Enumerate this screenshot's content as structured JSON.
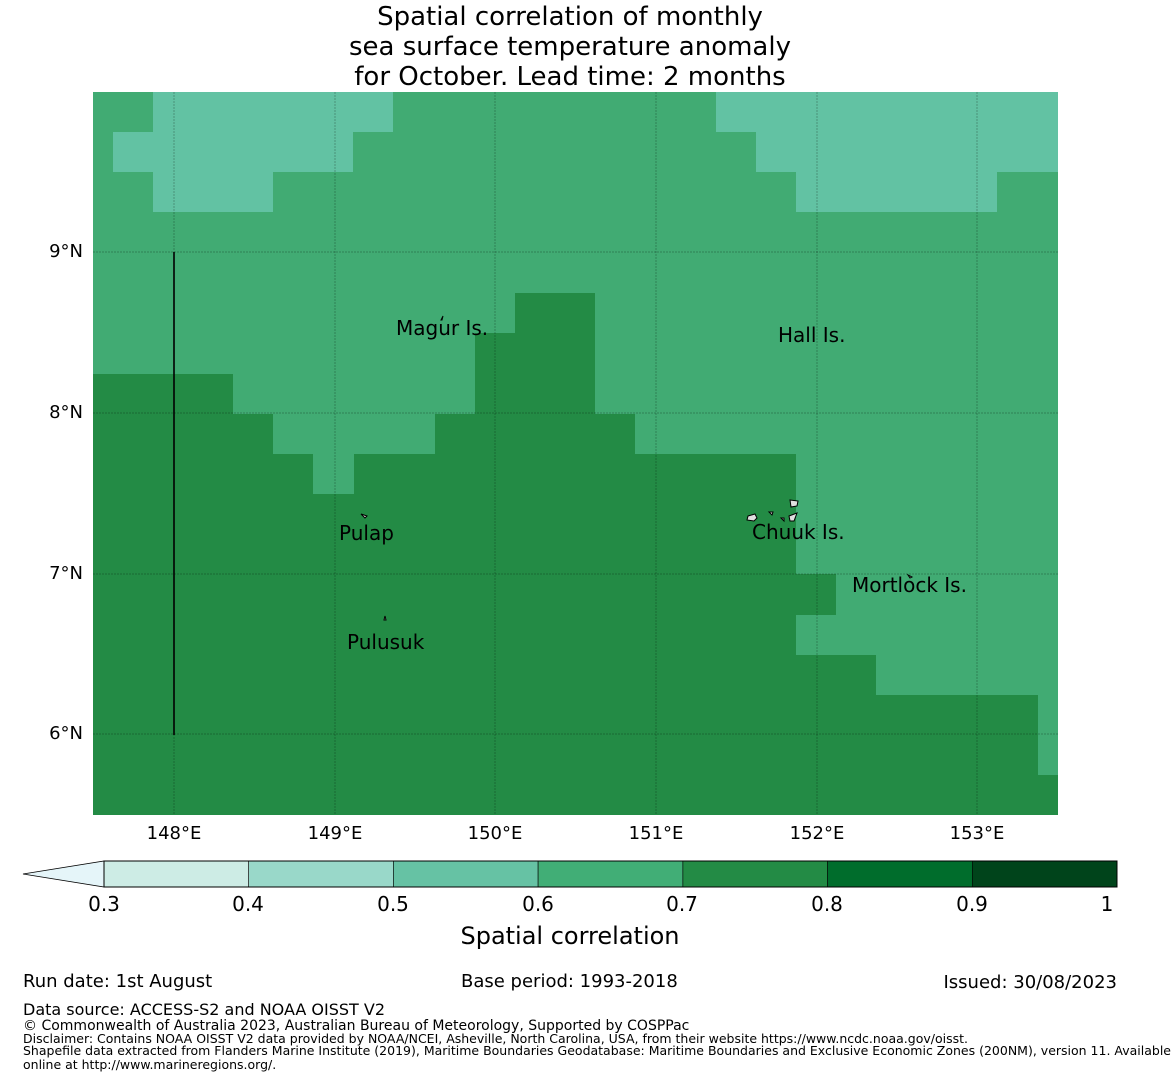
{
  "title": {
    "line1": "Spatial correlation of monthly",
    "line2": "sea surface temperature anomaly",
    "line3": "for October. Lead time: 2 months"
  },
  "map": {
    "lat_labels": [
      "9°N",
      "8°N",
      "7°N",
      "6°N"
    ],
    "lon_labels": [
      "148°E",
      "149°E",
      "150°E",
      "151°E",
      "152°E",
      "153°E"
    ],
    "lon_range": [
      147.5,
      153.5
    ],
    "lat_range": [
      5.5,
      10.0
    ],
    "places": [
      {
        "name": "Magur Is.",
        "lon": 149.6,
        "lat": 8.5
      },
      {
        "name": "Hall Is.",
        "lon": 151.97,
        "lat": 8.47
      },
      {
        "name": "Pulap",
        "lon": 149.2,
        "lat": 7.25
      },
      {
        "name": "Chuuk Is.",
        "lon": 151.9,
        "lat": 7.26
      },
      {
        "name": "Mortlock Is.",
        "lon": 152.6,
        "lat": 6.93
      },
      {
        "name": "Pulusuk",
        "lon": 149.33,
        "lat": 6.58
      }
    ],
    "colors": {
      "c05_06": "#62c2a3",
      "c06_07": "#41ab73",
      "c07_08": "#238b45"
    }
  },
  "colorbar": {
    "title": "Spatial correlation",
    "ticks": [
      "0.3",
      "0.4",
      "0.5",
      "0.6",
      "0.7",
      "0.8",
      "0.9",
      "1"
    ],
    "colors": [
      "#cdece5",
      "#99d8c9",
      "#66c2a4",
      "#41ae76",
      "#238b45",
      "#006d2c",
      "#00441b"
    ],
    "under_color": "#e5f5f9"
  },
  "footer": {
    "run_date": "Run date: 1st August",
    "base_period": "Base period: 1993-2018",
    "issued": "Issued: 30/08/2023",
    "data_source": "Data source: ACCESS-S2 and NOAA OISST V2",
    "copyright": "© Commonwealth of Australia 2023, Australian Bureau of Meteorology, Supported by COSPPac",
    "disclaimer": "Disclaimer: Contains NOAA OISST V2 data provided by NOAA/NCEI, Asheville, North Carolina, USA, from their website https://www.ncdc.noaa.gov/oisst.",
    "shapefile_line1": "Shapefile data extracted from Flanders Marine Institute (2019), Maritime Boundaries Geodatabase: Maritime Boundaries and Exclusive Economic Zones (200NM), version 11. Available",
    "shapefile_line2": "online at http://www.marineregions.org/."
  }
}
